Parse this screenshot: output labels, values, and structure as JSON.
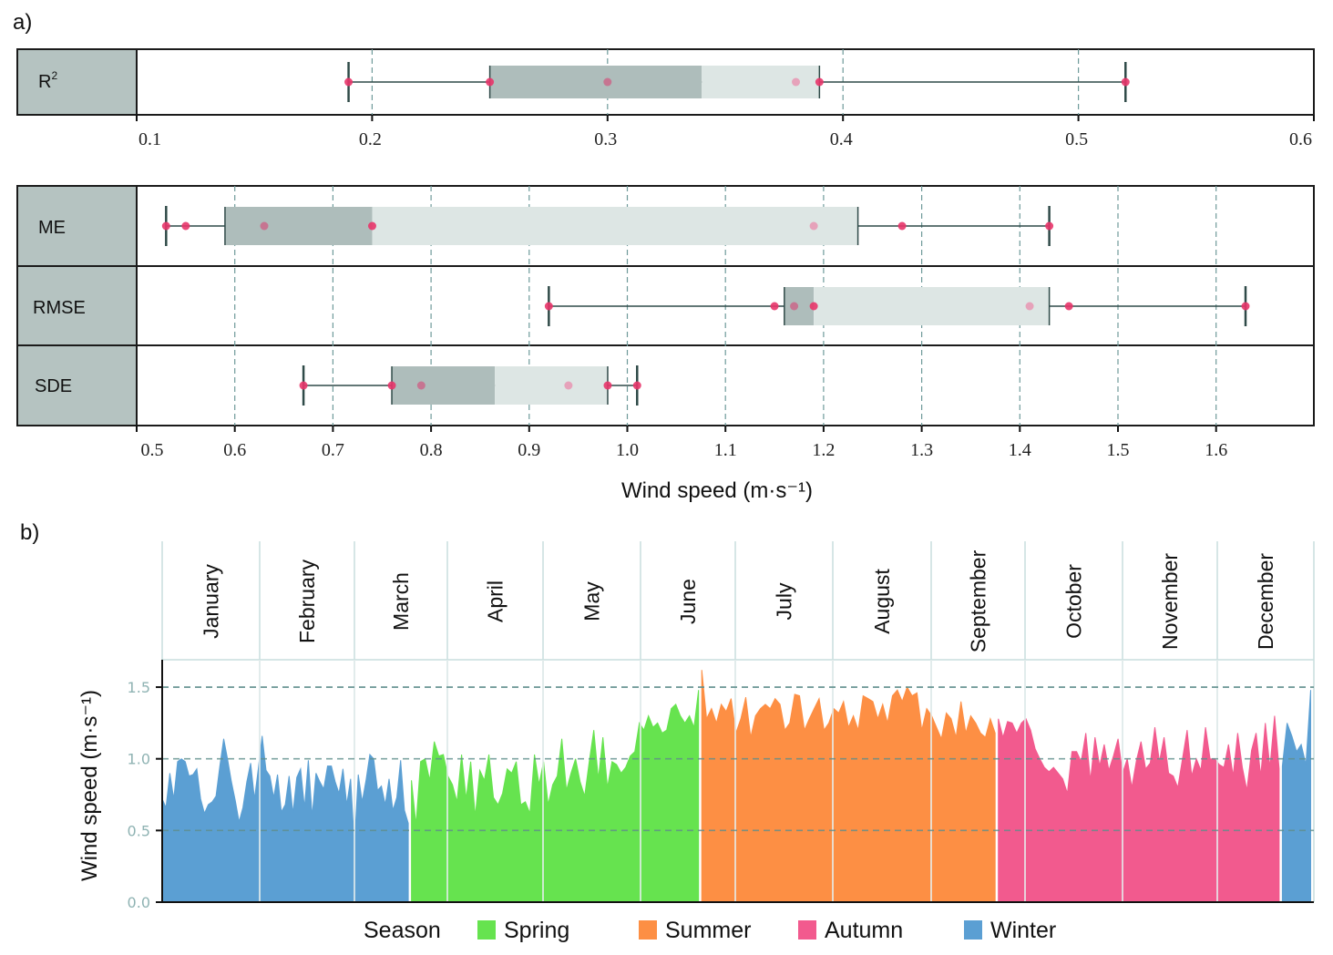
{
  "chart_data": [
    {
      "panel": "a)",
      "type": "boxplot",
      "title": "",
      "xlabel": "Wind speed (m·s⁻¹)",
      "grid": "vertical dashed",
      "subplots": [
        {
          "name": "R2",
          "label": "R",
          "label_sup": "2",
          "xlim": [
            0.1,
            0.6
          ],
          "ticks": [
            0.1,
            0.2,
            0.3,
            0.4,
            0.5,
            0.6
          ],
          "tick_labels": [
            "0.1",
            "0.2",
            "0.3",
            "0.4",
            "0.5",
            "0.6"
          ],
          "whisker_low": 0.19,
          "q1": 0.25,
          "median": 0.34,
          "q3": 0.39,
          "whisker_high": 0.52,
          "points": [
            0.19,
            0.25,
            0.3,
            0.38,
            0.39,
            0.52
          ]
        }
      ],
      "shared_axis": {
        "xlim": [
          0.5,
          1.7
        ],
        "ticks": [
          0.5,
          0.6,
          0.7,
          0.8,
          0.9,
          1.0,
          1.1,
          1.2,
          1.3,
          1.4,
          1.5,
          1.6
        ],
        "tick_labels": [
          "0.5",
          "0.6",
          "0.7",
          "0.8",
          "0.9",
          "1.0",
          "1.1",
          "1.2",
          "1.3",
          "1.4",
          "1.5",
          "1.6"
        ]
      },
      "rows": [
        {
          "name": "ME",
          "label": "ME",
          "whisker_low": 0.53,
          "q1": 0.59,
          "median": 0.74,
          "q3": 1.235,
          "whisker_high": 1.43,
          "points": [
            0.53,
            0.55,
            0.63,
            0.74,
            1.19,
            1.28,
            1.43
          ]
        },
        {
          "name": "RMSE",
          "label": "RMSE",
          "whisker_low": 0.92,
          "q1": 1.16,
          "median": 1.19,
          "q3": 1.43,
          "whisker_high": 1.63,
          "points": [
            0.92,
            1.15,
            1.17,
            1.19,
            1.41,
            1.45,
            1.63
          ]
        },
        {
          "name": "SDE",
          "label": "SDE",
          "whisker_low": 0.67,
          "q1": 0.76,
          "median": 0.865,
          "q3": 0.98,
          "whisker_high": 1.01,
          "points": [
            0.67,
            0.76,
            0.79,
            0.94,
            0.98,
            1.01
          ]
        }
      ]
    },
    {
      "panel": "b)",
      "type": "area",
      "title": "",
      "xlabel": "",
      "ylabel": "Wind speed (m·s⁻¹)",
      "ylim": [
        0,
        1.7
      ],
      "yticks": [
        0.0,
        0.5,
        1.0,
        1.5
      ],
      "ytick_labels": [
        "0.0",
        "0.5",
        "1.0",
        "1.5"
      ],
      "dashed_lines": [
        0.5,
        1.0,
        1.5
      ],
      "months": [
        "January",
        "February",
        "March",
        "April",
        "May",
        "June",
        "July",
        "August",
        "September",
        "October",
        "November",
        "December"
      ],
      "legend": {
        "title": "Season",
        "placement": "bottom",
        "items": [
          {
            "label": "Spring",
            "color": "#66e34f"
          },
          {
            "label": "Summer",
            "color": "#fd8f44"
          },
          {
            "label": "Autumn",
            "color": "#f25a8e"
          },
          {
            "label": "Winter",
            "color": "#5b9fd3"
          }
        ]
      },
      "series": [
        {
          "name": "Winter",
          "color": "#5b9fd3",
          "day_range": [
            1,
            79
          ],
          "values": [
            0.72,
            0.66,
            0.9,
            0.72,
            0.98,
            1.0,
            0.98,
            0.88,
            0.89,
            0.93,
            0.72,
            0.62,
            0.68,
            0.7,
            0.74,
            0.95,
            1.14,
            1.0,
            0.84,
            0.71,
            0.56,
            0.66,
            0.84,
            0.97,
            0.72,
            0.93,
            1.16,
            0.92,
            0.88,
            0.73,
            0.89,
            0.63,
            0.68,
            0.88,
            0.62,
            0.87,
            0.93,
            0.66,
            0.99,
            0.6,
            0.9,
            0.84,
            0.79,
            0.95,
            0.95,
            0.84,
            0.76,
            0.93,
            0.68,
            0.86,
            0.4,
            0.89,
            0.7,
            0.85,
            1.03,
            1.0,
            0.78,
            0.81,
            0.68,
            0.86,
            0.64,
            0.73,
            0.99,
            0.64,
            0.55
          ]
        },
        {
          "name": "Spring",
          "color": "#66e34f",
          "day_range": [
            80,
            171
          ],
          "values": [
            0.85,
            0.54,
            0.98,
            1.0,
            0.85,
            1.12,
            1.02,
            1.03,
            0.88,
            0.82,
            0.7,
            1.03,
            0.72,
            0.98,
            0.6,
            0.92,
            0.85,
            1.03,
            0.73,
            0.68,
            0.76,
            0.93,
            0.9,
            0.98,
            0.68,
            0.7,
            0.62,
            1.03,
            0.82,
            0.98,
            0.68,
            0.82,
            0.88,
            1.14,
            0.78,
            0.9,
            1.0,
            0.84,
            0.74,
            0.98,
            1.2,
            0.86,
            1.15,
            0.8,
            0.98,
            0.96,
            0.9,
            0.94,
            1.02,
            1.05,
            1.25,
            1.2,
            1.3,
            1.22,
            1.25,
            1.18,
            1.2,
            1.35,
            1.38,
            1.3,
            1.25,
            1.3,
            1.22,
            1.48
          ]
        },
        {
          "name": "Summer",
          "color": "#fd8f44",
          "day_range": [
            172,
            265
          ],
          "values": [
            1.62,
            1.28,
            1.35,
            1.25,
            1.38,
            1.33,
            1.42,
            1.18,
            1.28,
            1.43,
            1.15,
            1.3,
            1.35,
            1.38,
            1.35,
            1.42,
            1.38,
            1.2,
            1.25,
            1.45,
            1.44,
            1.2,
            1.28,
            1.35,
            1.42,
            1.2,
            1.25,
            1.35,
            1.32,
            1.4,
            1.22,
            1.3,
            1.2,
            1.44,
            1.42,
            1.4,
            1.28,
            1.38,
            1.25,
            1.44,
            1.48,
            1.4,
            1.5,
            1.44,
            1.46,
            1.2,
            1.35,
            1.3,
            1.22,
            1.14,
            1.32,
            1.28,
            1.15,
            1.4,
            1.18,
            1.3,
            1.25,
            1.18,
            1.15,
            1.28,
            1.18
          ]
        },
        {
          "name": "Autumn",
          "color": "#f25a8e",
          "day_range": [
            266,
            355
          ],
          "values": [
            1.28,
            1.15,
            1.26,
            1.25,
            1.18,
            1.25,
            1.28,
            1.2,
            1.07,
            1.0,
            0.94,
            0.91,
            0.94,
            0.9,
            0.86,
            0.76,
            1.05,
            1.05,
            0.98,
            1.18,
            0.85,
            1.15,
            0.95,
            1.1,
            0.92,
            1.02,
            1.14,
            0.9,
            1.0,
            0.8,
            0.99,
            1.12,
            0.93,
            0.97,
            1.22,
            0.98,
            1.15,
            0.9,
            0.88,
            0.8,
            1.0,
            1.2,
            0.88,
            1.0,
            0.92,
            1.22,
            1.0,
            1.0,
            0.96,
            0.94,
            1.1,
            0.88,
            1.18,
            0.94,
            0.78,
            1.06,
            1.18,
            0.88,
            1.25,
            0.94,
            1.3,
            0.93
          ]
        },
        {
          "name": "Winter",
          "color": "#5b9fd3",
          "day_range": [
            356,
            365
          ],
          "values": [
            0.95,
            1.25,
            1.16,
            1.05,
            1.1,
            0.96,
            1.48
          ]
        }
      ]
    }
  ]
}
